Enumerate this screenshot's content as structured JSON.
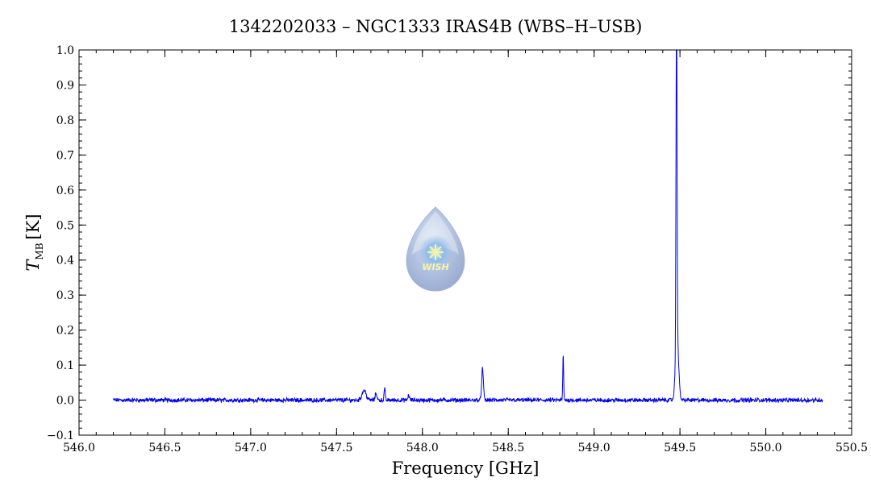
{
  "chart_data": {
    "type": "line",
    "title": "1342202033 – NGC1333 IRAS4B (WBS–H–USB)",
    "xlabel": "Frequency [GHz]",
    "ylabel_main": "T",
    "ylabel_sub": "MB",
    "ylabel_unit": "[K]",
    "xlim": [
      546.0,
      550.5
    ],
    "ylim": [
      -0.1,
      1.0
    ],
    "x_ticks": [
      "546.0",
      "546.5",
      "547.0",
      "547.5",
      "548.0",
      "548.5",
      "549.0",
      "549.5",
      "550.0",
      "550.5"
    ],
    "y_ticks": [
      "−0.1",
      "0.0",
      "0.1",
      "0.2",
      "0.3",
      "0.4",
      "0.5",
      "0.6",
      "0.7",
      "0.8",
      "0.9",
      "1.0"
    ],
    "grid": false,
    "logo": {
      "text": "WISH",
      "name": "wish-logo"
    },
    "series": [
      {
        "color": "#0000ee",
        "x_range": [
          546.2,
          550.33
        ],
        "baseline": 0.0,
        "noise": 0.005,
        "lines": [
          {
            "center": 547.66,
            "peak": 0.028,
            "width": 0.012
          },
          {
            "center": 547.73,
            "peak": 0.02,
            "width": 0.005
          },
          {
            "center": 547.78,
            "peak": 0.035,
            "width": 0.003
          },
          {
            "center": 547.92,
            "peak": 0.015,
            "width": 0.004
          },
          {
            "center": 548.35,
            "peak": 0.09,
            "width": 0.005
          },
          {
            "center": 548.82,
            "peak": 0.13,
            "width": 0.0025
          },
          {
            "center": 549.48,
            "peak": 0.97,
            "width": 0.003
          },
          {
            "center": 549.483,
            "peak": 0.18,
            "width": 0.009
          }
        ]
      }
    ]
  }
}
